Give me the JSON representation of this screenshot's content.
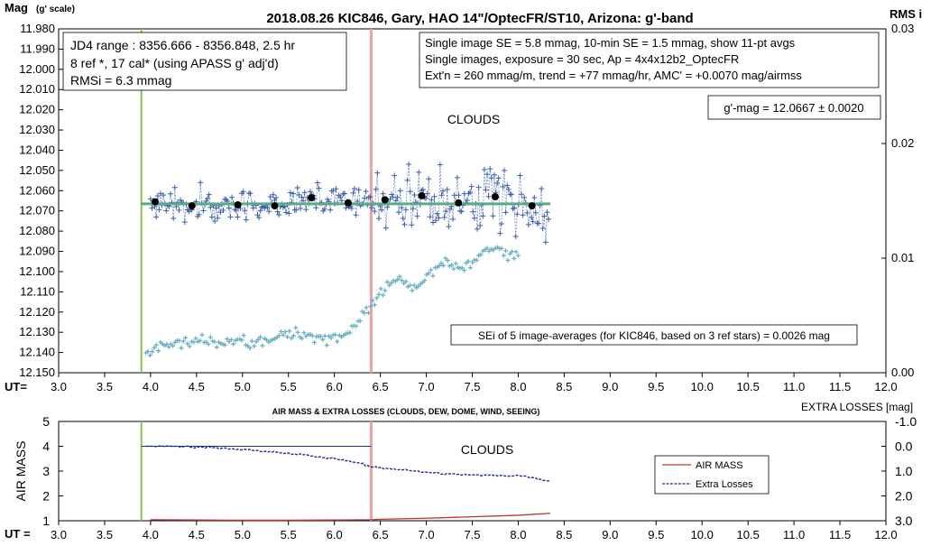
{
  "title": "2018.08.26  KIC846,  Gary, HAO 14\"/OptecFR/ST10,  Arizona:  g'-band",
  "upper_chart": {
    "y_left_label": "Mag",
    "y_left_label_note": "(g' scale)",
    "y_right_label": "RMS i",
    "x_label": "UT=",
    "clouds_label": "CLOUDS",
    "info_left": [
      "JD4 range : 8356.666 - 8356.848,  2.5  hr",
      "8 ref *,  17 cal* (using APASS g' adj'd)",
      "RMSi = 6.3 mmag"
    ],
    "info_right": [
      "Single image SE = 5.8 mmag, 10-min SE = 1.5 mmag, show  11-pt avgs",
      "Single images, exposure = 30 sec, Ap = 4x4x12b2_OptecFR",
      "Ext'n = 260 mmag/m, trend =  +77 mmag/hr, AMC' = +0.0070 mag/airmss"
    ],
    "gmag_box": "g'-mag = 12.0667 ± 0.0020",
    "sei_box": "SEi of 5 image-averages (for KIC846, based on 3 ref stars) = 0.0026  mag"
  },
  "lower_chart": {
    "title": "AIR MASS & EXTRA LOSSES (CLOUDS, DEW, DOME, WIND, SEEING)",
    "y_left_label": "AIR MASS",
    "y_right_label": "EXTRA LOSSES [mag]",
    "x_label": "UT =",
    "clouds_label": "CLOUDS",
    "legend": [
      "AIR MASS",
      "Extra Losses"
    ]
  },
  "colors": {
    "mag_points": "#3a5ea8",
    "avg_points": "#000000",
    "rms_points": "#6ab0c0",
    "fit_line": "#5aaa8a",
    "green_marker": "#8cc04a",
    "red_marker": "#f0a0a0",
    "air_mass": "#c03030",
    "extra_losses": "#1a2f8a",
    "gridline": "#000000"
  },
  "chart_data": [
    {
      "type": "scatter",
      "x_axis": {
        "label": "UT=",
        "min": 3.0,
        "max": 12.0,
        "step": 0.5,
        "ticks": [
          "3.0",
          "3.5",
          "4.0",
          "4.5",
          "5.0",
          "5.5",
          "6.0",
          "6.5",
          "7.0",
          "7.5",
          "8.0",
          "8.5",
          "9.0",
          "9.5",
          "10.0",
          "10.5",
          "11.0",
          "11.5",
          "12.0"
        ]
      },
      "y_left": {
        "label": "Mag (g' scale)",
        "min": 11.98,
        "max": 12.15,
        "inverted": true,
        "ticks": [
          "11.980",
          "11.990",
          "12.000",
          "12.010",
          "12.020",
          "12.030",
          "12.040",
          "12.050",
          "12.060",
          "12.070",
          "12.080",
          "12.090",
          "12.100",
          "12.110",
          "12.120",
          "12.130",
          "12.140",
          "12.150"
        ]
      },
      "y_right": {
        "label": "RMS i",
        "min": 0.0,
        "max": 0.03,
        "ticks": [
          "0.00",
          "0.01",
          "0.02",
          "0.03"
        ]
      },
      "vertical_markers": [
        {
          "x": 3.9,
          "color": "green"
        },
        {
          "x": 6.4,
          "color": "red"
        }
      ],
      "series": [
        {
          "name": "11-pt avgs",
          "x": [
            4.05,
            4.45,
            4.95,
            5.35,
            5.75,
            6.15,
            6.55,
            6.95,
            7.35,
            7.75,
            8.15
          ],
          "y": [
            12.0655,
            12.0675,
            12.067,
            12.0675,
            12.0635,
            12.066,
            12.0645,
            12.0625,
            12.066,
            12.063,
            12.0675
          ]
        },
        {
          "name": "fit",
          "x": [
            3.9,
            8.35
          ],
          "y": [
            12.0665,
            12.0665
          ]
        },
        {
          "name": "RMS i",
          "axis": "right",
          "x": [
            3.95,
            4.1,
            4.3,
            4.5,
            4.7,
            4.9,
            5.1,
            5.3,
            5.5,
            5.7,
            5.9,
            6.1,
            6.25,
            6.4,
            6.55,
            6.7,
            6.9,
            7.05,
            7.2,
            7.35,
            7.5,
            7.7,
            7.85,
            8.0
          ],
          "y": [
            0.0017,
            0.0022,
            0.0026,
            0.0028,
            0.0025,
            0.0028,
            0.0027,
            0.003,
            0.0033,
            0.0034,
            0.003,
            0.0033,
            0.0043,
            0.0057,
            0.0073,
            0.008,
            0.0075,
            0.0088,
            0.01,
            0.009,
            0.0095,
            0.011,
            0.0105,
            0.0102
          ]
        }
      ]
    },
    {
      "type": "line",
      "x_axis": {
        "label": "UT =",
        "min": 3.0,
        "max": 12.0,
        "step": 0.5,
        "ticks": [
          "3.0",
          "3.5",
          "4.0",
          "4.5",
          "5.0",
          "5.5",
          "6.0",
          "6.5",
          "7.0",
          "7.5",
          "8.0",
          "8.5",
          "9.0",
          "9.5",
          "10.0",
          "10.5",
          "11.0",
          "11.5",
          "12.0"
        ]
      },
      "y_left": {
        "label": "AIR MASS",
        "min": 1,
        "max": 5,
        "ticks": [
          "1",
          "2",
          "3",
          "4",
          "5"
        ]
      },
      "y_right": {
        "label": "EXTRA LOSSES [mag]",
        "min": -1.0,
        "max": 3.0,
        "inverted": true,
        "ticks": [
          "-1.0",
          "0.0",
          "1.0",
          "2.0",
          "3.0"
        ]
      },
      "vertical_markers": [
        {
          "x": 3.9,
          "color": "green"
        },
        {
          "x": 6.4,
          "color": "red"
        }
      ],
      "series": [
        {
          "name": "AIR MASS",
          "axis": "left",
          "x": [
            4.0,
            4.5,
            5.0,
            5.5,
            6.0,
            6.4,
            6.5,
            7.0,
            7.5,
            8.0,
            8.35
          ],
          "y": [
            1.04,
            1.03,
            1.02,
            1.02,
            1.03,
            1.04,
            1.06,
            1.1,
            1.16,
            1.22,
            1.3
          ]
        },
        {
          "name": "Extra Losses",
          "axis": "right",
          "x": [
            3.95,
            4.2,
            4.5,
            4.8,
            5.0,
            5.3,
            5.6,
            5.9,
            6.1,
            6.3,
            6.4,
            6.6,
            6.8,
            7.0,
            7.2,
            7.4,
            7.6,
            7.8,
            8.0,
            8.15,
            8.25,
            8.35
          ],
          "y": [
            0.0,
            0.0,
            0.03,
            0.08,
            0.14,
            0.22,
            0.33,
            0.45,
            0.55,
            0.7,
            0.82,
            0.9,
            0.97,
            1.05,
            1.1,
            1.15,
            1.16,
            1.18,
            1.2,
            1.25,
            1.35,
            1.4
          ]
        },
        {
          "name": "Extra Losses reference",
          "axis": "right",
          "x": [
            3.9,
            6.4
          ],
          "y": [
            0.0,
            0.0
          ]
        }
      ]
    }
  ]
}
